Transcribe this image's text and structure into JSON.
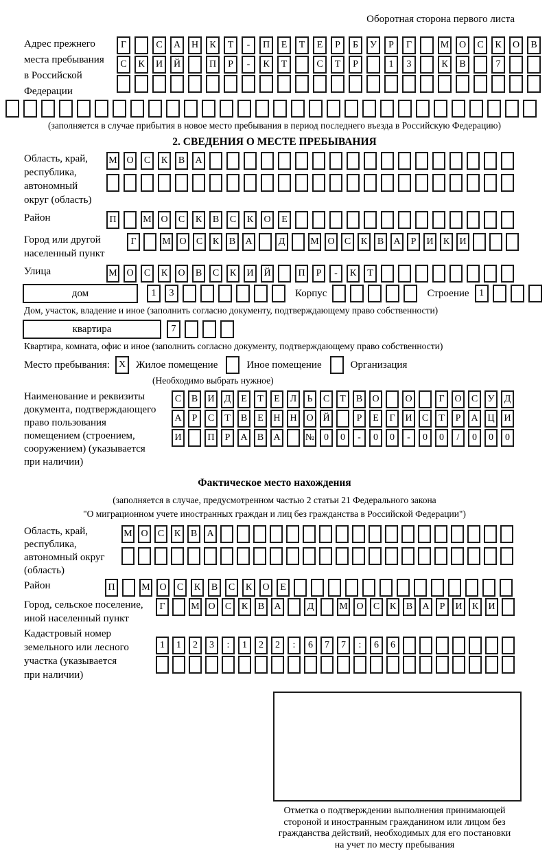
{
  "page": {
    "header_note": "Оборотная сторона первого листа"
  },
  "prev_address": {
    "label_lines": [
      "Адрес прежнего",
      "места пребывания",
      "в Российской",
      "Федерации"
    ],
    "rows": [
      [
        "Г",
        "",
        "С",
        "А",
        "Н",
        "К",
        "Т",
        "-",
        "П",
        "Е",
        "Т",
        "Е",
        "Р",
        "Б",
        "У",
        "Р",
        "Г",
        "",
        "М",
        "О",
        "С",
        "К",
        "О",
        "В"
      ],
      [
        "С",
        "К",
        "И",
        "Й",
        "",
        "П",
        "Р",
        "-",
        "К",
        "Т",
        "",
        "С",
        "Т",
        "Р",
        "",
        "1",
        "3",
        "",
        "К",
        "В",
        "",
        "7",
        "",
        ""
      ],
      [
        "",
        "",
        "",
        "",
        "",
        "",
        "",
        "",
        "",
        "",
        "",
        "",
        "",
        "",
        "",
        "",
        "",
        "",
        "",
        "",
        "",
        "",
        "",
        ""
      ]
    ],
    "full_row": [
      "",
      "",
      "",
      "",
      "",
      "",
      "",
      "",
      "",
      "",
      "",
      "",
      "",
      "",
      "",
      "",
      "",
      "",
      "",
      "",
      "",
      "",
      "",
      "",
      "",
      "",
      "",
      "",
      "",
      ""
    ],
    "note": "(заполняется в случае прибытия в новое место пребывания в период последнего въезда в Российскую Федерацию)"
  },
  "section2": {
    "title": "2. СВЕДЕНИЯ О МЕСТЕ ПРЕБЫВАНИЯ",
    "region": {
      "label_lines": [
        "Область, край,",
        "республика,",
        "автономный",
        "округ (область)"
      ],
      "rows": [
        [
          "М",
          "О",
          "С",
          "К",
          "В",
          "А",
          "",
          "",
          "",
          "",
          "",
          "",
          "",
          "",
          "",
          "",
          "",
          "",
          "",
          "",
          "",
          "",
          "",
          ""
        ],
        [
          "",
          "",
          "",
          "",
          "",
          "",
          "",
          "",
          "",
          "",
          "",
          "",
          "",
          "",
          "",
          "",
          "",
          "",
          "",
          "",
          "",
          "",
          "",
          ""
        ]
      ]
    },
    "district": {
      "label": "Район",
      "cells": [
        "П",
        "",
        "М",
        "О",
        "С",
        "К",
        "В",
        "С",
        "К",
        "О",
        "Е",
        "",
        "",
        "",
        "",
        "",
        "",
        "",
        "",
        "",
        "",
        "",
        "",
        ""
      ]
    },
    "city": {
      "label_lines": [
        "Город или другой",
        "населенный пункт"
      ],
      "cells": [
        "Г",
        "",
        "М",
        "О",
        "С",
        "К",
        "В",
        "А",
        "",
        "Д",
        "",
        "М",
        "О",
        "С",
        "К",
        "В",
        "А",
        "Р",
        "И",
        "К",
        "И",
        "",
        "",
        ""
      ]
    },
    "street": {
      "label": "Улица",
      "cells": [
        "М",
        "О",
        "С",
        "К",
        "О",
        "В",
        "С",
        "К",
        "И",
        "Й",
        "",
        "П",
        "Р",
        "-",
        "К",
        "Т",
        "",
        "",
        "",
        "",
        "",
        "",
        "",
        ""
      ]
    },
    "house": {
      "box_label": "дом",
      "cells": [
        "1",
        "3",
        "",
        "",
        "",
        "",
        "",
        ""
      ],
      "korpus_label": "Корпус",
      "korpus_cells": [
        "",
        "",
        "",
        "",
        ""
      ],
      "stroenie_label": "Строение",
      "stroenie_cells": [
        "1",
        "",
        "",
        ""
      ]
    },
    "house_note": "Дом, участок, владение и иное (заполнить согласно документу, подтверждающему право собственности)",
    "apartment": {
      "box_label": "квартира",
      "cells": [
        "7",
        "",
        "",
        ""
      ]
    },
    "apartment_note": "Квартира, комната, офис и иное (заполнить согласно документу, подтверждающему право собственности)",
    "stay": {
      "label": "Место пребывания:",
      "options": [
        {
          "mark": "X",
          "label": "Жилое помещение"
        },
        {
          "mark": "",
          "label": "Иное помещение"
        },
        {
          "mark": "",
          "label": "Организация"
        }
      ],
      "note": "(Необходимо выбрать нужное)"
    },
    "document": {
      "label_lines": [
        "Наименование и реквизиты",
        "документа, подтверждающего",
        "право пользования",
        "помещением (строением,",
        "сооружением) (указывается",
        "при наличии)"
      ],
      "rows": [
        [
          "С",
          "В",
          "И",
          "Д",
          "Е",
          "Т",
          "Е",
          "Л",
          "Ь",
          "С",
          "Т",
          "В",
          "О",
          "",
          "О",
          "",
          "Г",
          "О",
          "С",
          "У",
          "Д"
        ],
        [
          "А",
          "Р",
          "С",
          "Т",
          "В",
          "Е",
          "Н",
          "Н",
          "О",
          "Й",
          "",
          "Р",
          "Е",
          "Г",
          "И",
          "С",
          "Т",
          "Р",
          "А",
          "Ц",
          "И"
        ],
        [
          "И",
          "",
          "П",
          "Р",
          "А",
          "В",
          "А",
          "",
          "№",
          "0",
          "0",
          "-",
          "0",
          "0",
          "-",
          "0",
          "0",
          "/",
          "0",
          "0",
          "0"
        ]
      ]
    }
  },
  "actual": {
    "title": "Фактическое место нахождения",
    "note_lines": [
      "(заполняется в случае, предусмотренном частью 2 статьи 21 Федерального закона",
      "\"О миграционном учете иностранных граждан и лиц без гражданства в Российской Федерации\")"
    ],
    "region": {
      "label_lines": [
        "Область, край,",
        "республика,",
        "автономный округ",
        "(область)"
      ],
      "rows": [
        [
          "М",
          "О",
          "С",
          "К",
          "В",
          "А",
          "",
          "",
          "",
          "",
          "",
          "",
          "",
          "",
          "",
          "",
          "",
          "",
          "",
          "",
          "",
          "",
          "",
          ""
        ],
        [
          "",
          "",
          "",
          "",
          "",
          "",
          "",
          "",
          "",
          "",
          "",
          "",
          "",
          "",
          "",
          "",
          "",
          "",
          "",
          "",
          "",
          "",
          "",
          ""
        ]
      ]
    },
    "district": {
      "label": "Район",
      "cells": [
        "П",
        "",
        "М",
        "О",
        "С",
        "К",
        "В",
        "С",
        "К",
        "О",
        "Е",
        "",
        "",
        "",
        "",
        "",
        "",
        "",
        "",
        "",
        "",
        "",
        "",
        ""
      ]
    },
    "city": {
      "label_lines": [
        "Город, сельское поселение,",
        "иной населенный пункт"
      ],
      "cells": [
        "Г",
        "",
        "М",
        "О",
        "С",
        "К",
        "В",
        "А",
        "",
        "Д",
        "",
        "М",
        "О",
        "С",
        "К",
        "В",
        "А",
        "Р",
        "И",
        "К",
        "И",
        ""
      ]
    },
    "cadastral": {
      "label_lines": [
        "Кадастровый номер",
        "земельного или лесного",
        "участка (указывается",
        "при наличии)"
      ],
      "rows": [
        [
          "1",
          "1",
          "2",
          "3",
          ":",
          "1",
          "2",
          "2",
          ":",
          "6",
          "7",
          "7",
          ":",
          "6",
          "6",
          "",
          "",
          "",
          "",
          "",
          "",
          ""
        ],
        [
          "",
          "",
          "",
          "",
          "",
          "",
          "",
          "",
          "",
          "",
          "",
          "",
          "",
          "",
          "",
          "",
          "",
          "",
          "",
          "",
          "",
          ""
        ]
      ]
    },
    "stamp_note_lines": [
      "Отметка о подтверждении выполнения принимающей",
      "стороной и иностранным гражданином или лицом без",
      "гражданства действий, необходимых для его постановки",
      "на учет по месту пребывания"
    ]
  }
}
